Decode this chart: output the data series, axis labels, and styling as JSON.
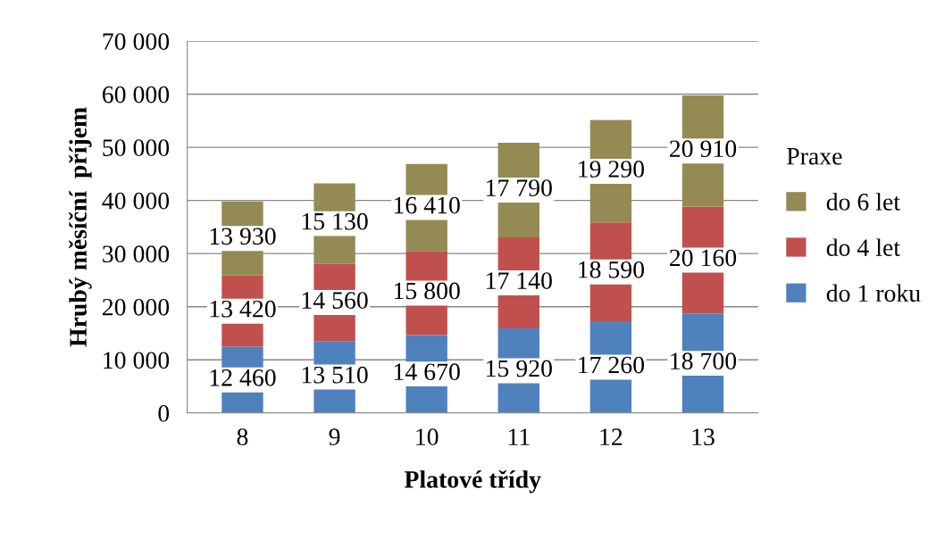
{
  "chart_data": {
    "type": "bar",
    "stacked": true,
    "xlabel": "Platové třídy",
    "ylabel": "Hrubý měsíční  příjem",
    "legend_title": "Praxe",
    "categories": [
      "8",
      "9",
      "10",
      "11",
      "12",
      "13"
    ],
    "series": [
      {
        "name": "do 1 roku",
        "color": "#4f81bd",
        "values": [
          12460,
          13510,
          14670,
          15920,
          17260,
          18700
        ],
        "value_labels": [
          "12 460",
          "13 510",
          "14 670",
          "15 920",
          "17 260",
          "18 700"
        ]
      },
      {
        "name": "do 4 let",
        "color": "#c0504d",
        "values": [
          13420,
          14560,
          15800,
          17140,
          18590,
          20160
        ],
        "value_labels": [
          "13 420",
          "14 560",
          "15 800",
          "17 140",
          "18 590",
          "20 160"
        ]
      },
      {
        "name": "do 6 let",
        "color": "#948a54",
        "values": [
          13930,
          15130,
          16410,
          17790,
          19290,
          20910
        ],
        "value_labels": [
          "13 930",
          "15 130",
          "16 410",
          "17 790",
          "19 290",
          "20 910"
        ]
      }
    ],
    "ylim": [
      0,
      70000
    ],
    "yticks": [
      {
        "value": 0,
        "label": "0"
      },
      {
        "value": 10000,
        "label": "10 000"
      },
      {
        "value": 20000,
        "label": "20 000"
      },
      {
        "value": 30000,
        "label": "30 000"
      },
      {
        "value": 40000,
        "label": "40 000"
      },
      {
        "value": 50000,
        "label": "50 000"
      },
      {
        "value": 60000,
        "label": "60 000"
      },
      {
        "value": 70000,
        "label": "70 000"
      }
    ],
    "grid": "y",
    "legend": "right"
  }
}
